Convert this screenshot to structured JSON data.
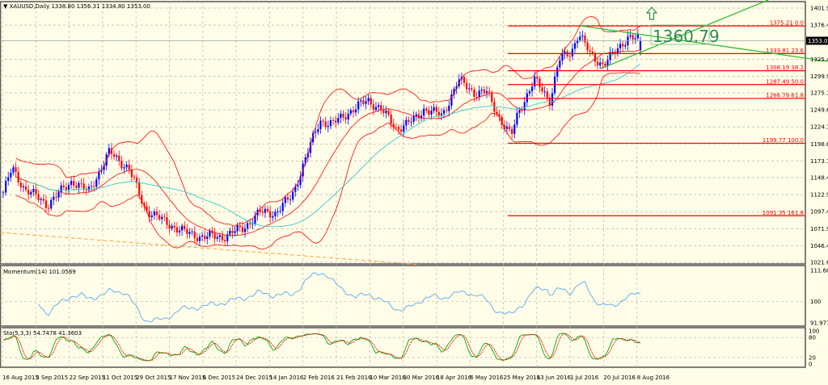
{
  "header": {
    "symbol": "XAUUSD,Daily",
    "ohlc": "1338.80 1356.31 1334.80 1353.00"
  },
  "colors": {
    "background": "#fffde8",
    "grid": "#b8b8a8",
    "bull_candle": "#0000ff",
    "bear_candle": "#ff0000",
    "bollinger": "#ff0000",
    "moving_average": "#33cccc",
    "momentum": "#5aa8f0",
    "stoch_main": "#00aa00",
    "stoch_signal": "#ff0000",
    "fibo": "#ff0000",
    "trendline": "#33bb33",
    "support_line": "#ffa040",
    "price_label": "#2e8b57"
  },
  "chart_data": [
    {
      "type": "candlestick",
      "title": "XAUUSD,Daily",
      "ylim": [
        1021.65,
        1401.9
      ],
      "y_ticks": [
        "1401.90",
        "1376.40",
        "1325.40",
        "1299.90",
        "1275.15",
        "1249.65",
        "1224.15",
        "1198.65",
        "1173.15",
        "1148.40",
        "1122.90",
        "1097.40",
        "1071.90",
        "1046.40",
        "1021.65"
      ],
      "current_price": "1353.00",
      "x_ticks": [
        "16 Aug 2015",
        "3 Sep 2015",
        "22 Sep 2015",
        "11 Oct 2015",
        "29 Oct 2015",
        "17 Nov 2015",
        "6 Dec 2015",
        "24 Dec 2015",
        "14 Jan 2016",
        "2 Feb 2016",
        "21 Feb 2016",
        "10 Mar 2016",
        "30 Mar 2016",
        "18 Apr 2016",
        "6 May 2016",
        "25 May 2016",
        "13 Jun 2016",
        "1 Jul 2016",
        "20 Jul 2016",
        "8 Aug 2016"
      ],
      "grid": true,
      "close_path": [
        [
          "2015-08-18",
          1126
        ],
        [
          "2015-08-23",
          1162
        ],
        [
          "2015-08-30",
          1132
        ],
        [
          "2015-09-12",
          1108
        ],
        [
          "2015-09-26",
          1144
        ],
        [
          "2015-10-05",
          1126
        ],
        [
          "2015-10-17",
          1186
        ],
        [
          "2015-10-28",
          1162
        ],
        [
          "2015-11-06",
          1102
        ],
        [
          "2015-11-16",
          1084
        ],
        [
          "2015-11-29",
          1066
        ],
        [
          "2015-12-08",
          1060
        ],
        [
          "2015-12-20",
          1060
        ],
        [
          "2015-12-31",
          1072
        ],
        [
          "2016-01-10",
          1096
        ],
        [
          "2016-01-19",
          1096
        ],
        [
          "2016-01-28",
          1120
        ],
        [
          "2016-02-06",
          1186
        ],
        [
          "2016-02-13",
          1234
        ],
        [
          "2016-02-20",
          1228
        ],
        [
          "2016-02-29",
          1246
        ],
        [
          "2016-03-11",
          1264
        ],
        [
          "2016-03-18",
          1252
        ],
        [
          "2016-03-27",
          1222
        ],
        [
          "2016-04-06",
          1234
        ],
        [
          "2016-04-12",
          1252
        ],
        [
          "2016-04-22",
          1240
        ],
        [
          "2016-05-01",
          1294
        ],
        [
          "2016-05-10",
          1276
        ],
        [
          "2016-05-17",
          1276
        ],
        [
          "2016-05-24",
          1240
        ],
        [
          "2016-05-31",
          1210
        ],
        [
          "2016-06-04",
          1246
        ],
        [
          "2016-06-13",
          1294
        ],
        [
          "2016-06-22",
          1264
        ],
        [
          "2016-06-27",
          1324
        ],
        [
          "2016-07-04",
          1336
        ],
        [
          "2016-07-08",
          1366
        ],
        [
          "2016-07-15",
          1330
        ],
        [
          "2016-07-22",
          1318
        ],
        [
          "2016-07-29",
          1336
        ],
        [
          "2016-08-05",
          1360
        ],
        [
          "2016-08-12",
          1353
        ]
      ],
      "fibonacci": [
        {
          "price": 1375.21,
          "label": "1375.21 0.0"
        },
        {
          "price": 1333.81,
          "label": "1333.81 23.6"
        },
        {
          "price": 1308.19,
          "label": "1308.19 38.2"
        },
        {
          "price": 1287.49,
          "label": "1287.49 50.0"
        },
        {
          "price": 1266.79,
          "label": "1266.79 61.8"
        },
        {
          "price": 1199.77,
          "label": "1199.77 100.0"
        },
        {
          "price": 1091.35,
          "label": "1091.35 161.8"
        }
      ],
      "price_label": "1360.79",
      "arrow": "up-arrow"
    },
    {
      "type": "line",
      "title": "Momentum(14) 101.0569",
      "ylim": [
        91.9778,
        111.687
      ],
      "y_ticks": [
        "111.687",
        "100",
        "91.9778"
      ]
    },
    {
      "type": "line",
      "title": "Sto(5,3,3) 54.7478 41.3603",
      "ylim": [
        0,
        100
      ],
      "y_ticks": [
        "100",
        "80",
        "20",
        "0"
      ]
    }
  ]
}
